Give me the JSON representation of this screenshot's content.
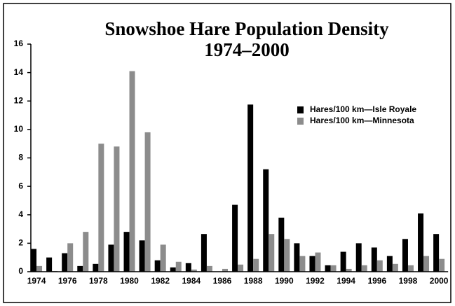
{
  "chart_data": {
    "type": "bar",
    "title": "Snowshoe Hare Population Density",
    "subtitle": "1974–2000",
    "categories": [
      "1974",
      null,
      "1976",
      null,
      "1978",
      null,
      "1980",
      null,
      "1982",
      null,
      "1984",
      null,
      "1986",
      null,
      "1988",
      null,
      "1990",
      null,
      "1992",
      null,
      "1994",
      null,
      "1996",
      null,
      "1998",
      null,
      "2000"
    ],
    "series": [
      {
        "name": "Hares/100 km—Isle Royale",
        "color": "#000000",
        "values": [
          1.6,
          1.0,
          1.3,
          0.4,
          0.55,
          1.9,
          2.8,
          2.2,
          0.8,
          0.3,
          0.6,
          2.65,
          0,
          4.7,
          11.75,
          7.2,
          3.8,
          2.0,
          1.1,
          0.45,
          1.4,
          2.0,
          1.7,
          1.1,
          2.3,
          4.1,
          2.65
        ]
      },
      {
        "name": "Hares/100 km—Minnesota",
        "color": "#8c8c8c",
        "values": [
          0.4,
          0.05,
          2.0,
          2.8,
          9.0,
          8.8,
          14.1,
          9.8,
          1.9,
          0.7,
          0.15,
          0.4,
          0.2,
          0.5,
          0.9,
          2.65,
          2.3,
          1.1,
          1.35,
          0.45,
          0.2,
          0.45,
          0.8,
          0.55,
          0.45,
          1.1,
          0.9
        ]
      }
    ],
    "ylim": [
      0,
      16
    ],
    "yticks": [
      0,
      2,
      4,
      6,
      8,
      10,
      12,
      14,
      16
    ],
    "legend": "upper right"
  }
}
